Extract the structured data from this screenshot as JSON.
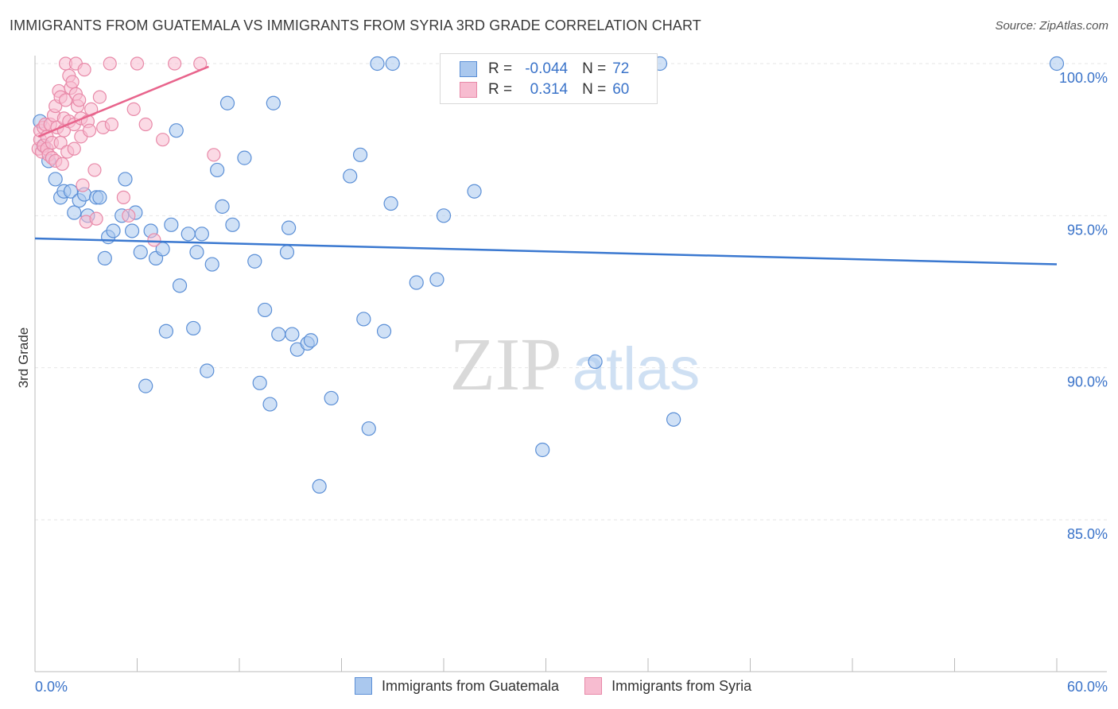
{
  "header": {
    "title": "IMMIGRANTS FROM GUATEMALA VS IMMIGRANTS FROM SYRIA 3RD GRADE CORRELATION CHART",
    "source": "Source: ZipAtlas.com"
  },
  "watermark": {
    "zip": "ZIP",
    "atlas": "atlas"
  },
  "legend": {
    "rows": [
      {
        "r_label": "R =",
        "r_value": "-0.044",
        "n_label": "N =",
        "n_value": "72"
      },
      {
        "r_label": "R =",
        "r_value": "0.314",
        "n_label": "N =",
        "n_value": "60"
      }
    ]
  },
  "colors": {
    "guatemala_fill": "#aac8ee",
    "guatemala_stroke": "#5b8fd6",
    "guatemala_line": "#3a78d0",
    "syria_fill": "#f7bcd0",
    "syria_stroke": "#e889a8",
    "syria_line": "#e8648c",
    "tick_label": "#3a73c9",
    "grid": "#e6e6e6"
  },
  "chart_data": {
    "type": "scatter",
    "title": "IMMIGRANTS FROM GUATEMALA VS IMMIGRANTS FROM SYRIA 3RD GRADE CORRELATION CHART",
    "xlabel": "",
    "ylabel": "3rd Grade",
    "xlim": [
      0,
      60
    ],
    "ylim": [
      80.5,
      100.7
    ],
    "x_tick_labels": [
      "0.0%",
      "60.0%"
    ],
    "y_ticks": [
      85,
      90,
      95,
      100
    ],
    "y_tick_labels": [
      "85.0%",
      "90.0%",
      "95.0%",
      "100.0%"
    ],
    "grid": true,
    "series": [
      {
        "name": "Immigrants from Guatemala",
        "trend": {
          "x": [
            0,
            60
          ],
          "y": [
            94.25,
            93.4
          ]
        },
        "points": [
          [
            0.3,
            98.1
          ],
          [
            0.8,
            96.8
          ],
          [
            1.2,
            96.2
          ],
          [
            1.5,
            95.6
          ],
          [
            1.7,
            95.8
          ],
          [
            2.1,
            95.8
          ],
          [
            2.3,
            95.1
          ],
          [
            2.6,
            95.5
          ],
          [
            2.9,
            95.7
          ],
          [
            3.1,
            95.0
          ],
          [
            3.6,
            95.6
          ],
          [
            3.8,
            95.6
          ],
          [
            4.1,
            93.6
          ],
          [
            4.3,
            94.3
          ],
          [
            4.6,
            94.5
          ],
          [
            5.1,
            95.0
          ],
          [
            5.3,
            96.2
          ],
          [
            5.7,
            94.5
          ],
          [
            5.9,
            95.1
          ],
          [
            6.2,
            93.8
          ],
          [
            6.5,
            89.4
          ],
          [
            6.8,
            94.5
          ],
          [
            7.1,
            93.6
          ],
          [
            7.5,
            93.9
          ],
          [
            7.7,
            91.2
          ],
          [
            8.0,
            94.7
          ],
          [
            8.5,
            92.7
          ],
          [
            8.3,
            97.8
          ],
          [
            9.0,
            94.4
          ],
          [
            9.3,
            91.3
          ],
          [
            9.5,
            93.8
          ],
          [
            9.8,
            94.4
          ],
          [
            10.1,
            89.9
          ],
          [
            10.4,
            93.4
          ],
          [
            10.7,
            96.5
          ],
          [
            11.0,
            95.3
          ],
          [
            11.3,
            98.7
          ],
          [
            11.6,
            94.7
          ],
          [
            12.3,
            96.9
          ],
          [
            12.9,
            93.5
          ],
          [
            13.2,
            89.5
          ],
          [
            13.5,
            91.9
          ],
          [
            13.8,
            88.8
          ],
          [
            14.0,
            98.7
          ],
          [
            14.3,
            91.1
          ],
          [
            14.8,
            93.8
          ],
          [
            14.9,
            94.6
          ],
          [
            15.1,
            91.1
          ],
          [
            15.4,
            90.6
          ],
          [
            16.0,
            90.8
          ],
          [
            16.2,
            90.9
          ],
          [
            16.7,
            86.1
          ],
          [
            17.4,
            89.0
          ],
          [
            18.5,
            96.3
          ],
          [
            19.1,
            97.0
          ],
          [
            19.3,
            91.6
          ],
          [
            19.6,
            88.0
          ],
          [
            20.1,
            100.0
          ],
          [
            20.5,
            91.2
          ],
          [
            21.0,
            100.0
          ],
          [
            20.9,
            95.4
          ],
          [
            22.4,
            92.8
          ],
          [
            23.6,
            92.9
          ],
          [
            24.0,
            95.0
          ],
          [
            25.8,
            95.8
          ],
          [
            29.8,
            87.3
          ],
          [
            32.7,
            100.0
          ],
          [
            32.9,
            90.2
          ],
          [
            36.7,
            100.0
          ],
          [
            37.5,
            88.3
          ],
          [
            60.0,
            100.0
          ],
          [
            0.5,
            97.3
          ]
        ]
      },
      {
        "name": "Immigrants from Syria",
        "trend": {
          "x": [
            0.2,
            10.2
          ],
          "y": [
            97.6,
            99.9
          ]
        },
        "points": [
          [
            0.2,
            97.2
          ],
          [
            0.3,
            97.5
          ],
          [
            0.3,
            97.8
          ],
          [
            0.4,
            97.1
          ],
          [
            0.5,
            97.9
          ],
          [
            0.5,
            97.3
          ],
          [
            0.6,
            98.0
          ],
          [
            0.7,
            97.6
          ],
          [
            0.7,
            97.2
          ],
          [
            0.8,
            97.0
          ],
          [
            0.9,
            98.0
          ],
          [
            1.0,
            96.9
          ],
          [
            1.0,
            97.4
          ],
          [
            1.1,
            98.3
          ],
          [
            1.2,
            96.8
          ],
          [
            1.2,
            98.6
          ],
          [
            1.3,
            97.9
          ],
          [
            1.4,
            99.1
          ],
          [
            1.5,
            98.9
          ],
          [
            1.5,
            97.4
          ],
          [
            1.6,
            96.7
          ],
          [
            1.7,
            98.2
          ],
          [
            1.7,
            97.8
          ],
          [
            1.8,
            100.0
          ],
          [
            1.8,
            98.8
          ],
          [
            1.9,
            97.1
          ],
          [
            2.0,
            99.6
          ],
          [
            2.0,
            98.1
          ],
          [
            2.1,
            99.2
          ],
          [
            2.2,
            99.4
          ],
          [
            2.3,
            98.0
          ],
          [
            2.3,
            97.2
          ],
          [
            2.4,
            99.0
          ],
          [
            2.4,
            100.0
          ],
          [
            2.5,
            98.6
          ],
          [
            2.6,
            98.8
          ],
          [
            2.7,
            97.6
          ],
          [
            2.7,
            98.2
          ],
          [
            2.8,
            96.0
          ],
          [
            2.9,
            99.8
          ],
          [
            3.0,
            94.8
          ],
          [
            3.1,
            98.1
          ],
          [
            3.2,
            97.8
          ],
          [
            3.3,
            98.5
          ],
          [
            3.5,
            96.5
          ],
          [
            3.8,
            98.9
          ],
          [
            4.0,
            97.9
          ],
          [
            4.4,
            100.0
          ],
          [
            4.5,
            98.0
          ],
          [
            5.2,
            95.6
          ],
          [
            5.5,
            95.0
          ],
          [
            5.8,
            98.5
          ],
          [
            6.0,
            100.0
          ],
          [
            6.5,
            98.0
          ],
          [
            7.0,
            94.2
          ],
          [
            7.5,
            97.5
          ],
          [
            8.2,
            100.0
          ],
          [
            9.7,
            100.0
          ],
          [
            10.5,
            97.0
          ],
          [
            3.6,
            94.9
          ]
        ]
      }
    ]
  },
  "bottom_legend": {
    "items": [
      {
        "label": "Immigrants from Guatemala"
      },
      {
        "label": "Immigrants from Syria"
      }
    ]
  }
}
